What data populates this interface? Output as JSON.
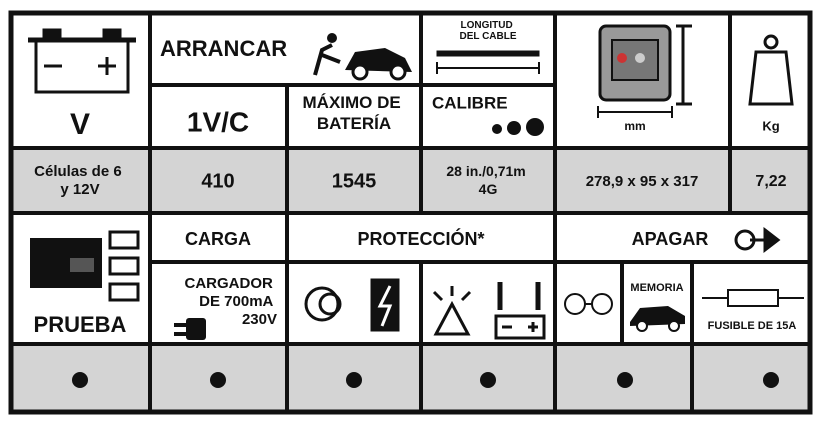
{
  "header": {
    "voltage": "V",
    "start": "ARRANCAR",
    "cable_length": [
      "LONGITUD",
      "DEL CABLE"
    ],
    "cells": "1V/C",
    "max_battery": [
      "MÁXIMO DE",
      "BATERÍA"
    ],
    "gauge": "CALIBRE",
    "dimensions_unit": "mm",
    "weight_unit": "Kg"
  },
  "specs": {
    "voltage": [
      "Células de 6",
      "y 12V"
    ],
    "cells": "410",
    "max_battery": "1545",
    "cable": [
      "28 in./0,71m",
      "4G"
    ],
    "dimensions": "278,9 x 95 x 317",
    "weight": "7,22"
  },
  "features": {
    "test": "PRUEBA",
    "charge": "CARGA",
    "protection": "PROTECCIÓN*",
    "shutdown": "APAGAR",
    "charger": [
      "CARGADOR",
      "DE 700mA",
      "230V"
    ],
    "memory": "MEMORIA",
    "fuse": "FUSIBLE DE 15A"
  }
}
